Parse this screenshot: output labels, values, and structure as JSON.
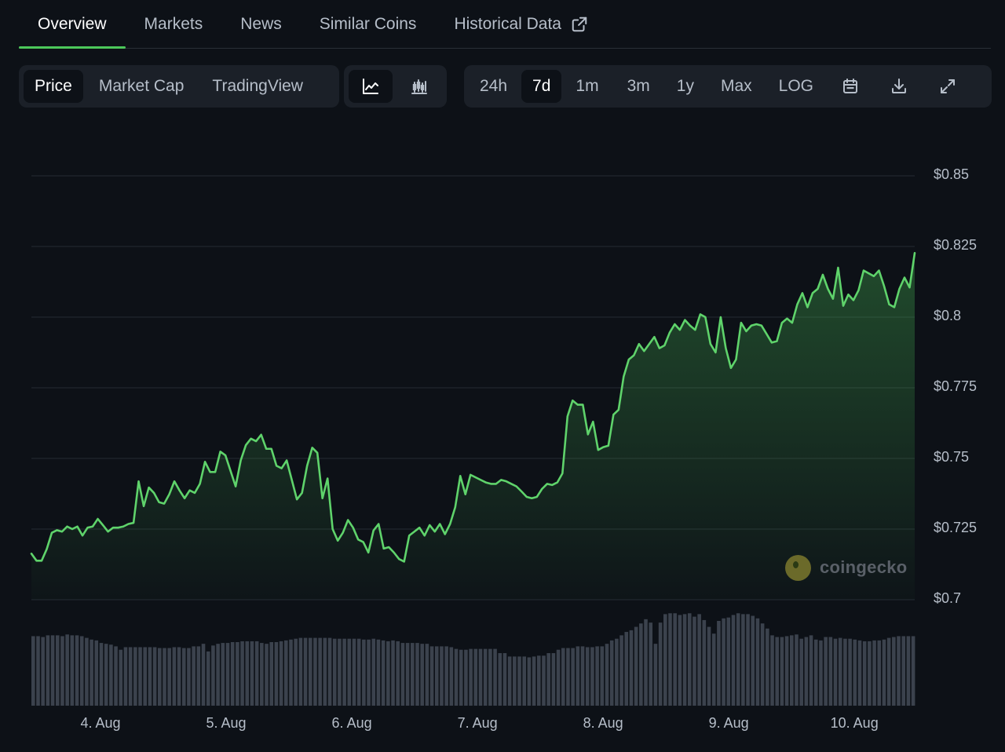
{
  "tabs": [
    {
      "label": "Overview"
    },
    {
      "label": "Markets"
    },
    {
      "label": "News"
    },
    {
      "label": "Similar Coins"
    },
    {
      "label": "Historical Data"
    }
  ],
  "metric_toggle": [
    "Price",
    "Market Cap",
    "TradingView"
  ],
  "metric_selected": "Price",
  "chart_style_icons": [
    "line-chart-icon",
    "candlestick-icon"
  ],
  "ranges": [
    "24h",
    "7d",
    "1m",
    "3m",
    "1y",
    "Max",
    "LOG"
  ],
  "range_selected": "7d",
  "toolbar_icons": [
    "calendar-icon",
    "download-icon",
    "fullscreen-icon"
  ],
  "watermark": "coingecko",
  "colors": {
    "line": "#5fd36b",
    "accent": "#4cc85a",
    "volume": "#3b424d",
    "background": "#0d1117"
  },
  "chart_data": {
    "type": "area",
    "y_ticks": [
      "$0.7",
      "$0.725",
      "$0.75",
      "$0.775",
      "$0.8",
      "$0.825",
      "$0.85"
    ],
    "ylim": [
      0.7,
      0.85
    ],
    "x_ticks": [
      "4. Aug",
      "5. Aug",
      "6. Aug",
      "7. Aug",
      "8. Aug",
      "9. Aug",
      "10. Aug"
    ],
    "x_tick_days": [
      1,
      2,
      3,
      4,
      5,
      6,
      7
    ],
    "xlim_days": [
      0.45,
      7.48
    ],
    "grid": true,
    "price": [
      0.7163,
      0.7138,
      0.7138,
      0.7179,
      0.7237,
      0.7246,
      0.7241,
      0.7259,
      0.725,
      0.7259,
      0.7227,
      0.7255,
      0.7259,
      0.7286,
      0.7264,
      0.7241,
      0.7255,
      0.7255,
      0.7259,
      0.7268,
      0.7272,
      0.7419,
      0.7331,
      0.7397,
      0.7378,
      0.7345,
      0.734,
      0.7373,
      0.7419,
      0.7387,
      0.7359,
      0.7387,
      0.7378,
      0.741,
      0.7488,
      0.7452,
      0.7452,
      0.7524,
      0.7511,
      0.7456,
      0.7401,
      0.7493,
      0.7547,
      0.757,
      0.7561,
      0.7584,
      0.7534,
      0.7534,
      0.7474,
      0.7465,
      0.7493,
      0.7424,
      0.7355,
      0.7378,
      0.7474,
      0.7538,
      0.752,
      0.7359,
      0.7429,
      0.725,
      0.7209,
      0.7237,
      0.7282,
      0.7255,
      0.7213,
      0.7204,
      0.7167,
      0.7245,
      0.7268,
      0.7181,
      0.7186,
      0.7167,
      0.7144,
      0.7135,
      0.7227,
      0.7241,
      0.7255,
      0.7227,
      0.7264,
      0.7241,
      0.7268,
      0.7232,
      0.7268,
      0.7327,
      0.7438,
      0.7373,
      0.7442,
      0.7433,
      0.7424,
      0.7415,
      0.741,
      0.741,
      0.7424,
      0.7419,
      0.741,
      0.7401,
      0.7383,
      0.7364,
      0.7359,
      0.7364,
      0.7392,
      0.741,
      0.7406,
      0.7415,
      0.7447,
      0.7649,
      0.7705,
      0.769,
      0.769,
      0.7585,
      0.763,
      0.753,
      0.754,
      0.7545,
      0.7655,
      0.7672,
      0.779,
      0.785,
      0.7865,
      0.7905,
      0.788,
      0.7905,
      0.793,
      0.789,
      0.79,
      0.7945,
      0.7975,
      0.7955,
      0.799,
      0.797,
      0.7955,
      0.801,
      0.8,
      0.7905,
      0.7875,
      0.8,
      0.789,
      0.782,
      0.785,
      0.798,
      0.795,
      0.797,
      0.7975,
      0.797,
      0.794,
      0.791,
      0.7915,
      0.798,
      0.7995,
      0.798,
      0.8045,
      0.8085,
      0.8035,
      0.8085,
      0.81,
      0.815,
      0.81,
      0.8065,
      0.8175,
      0.804,
      0.808,
      0.806,
      0.8095,
      0.8165,
      0.8155,
      0.8145,
      0.8165,
      0.811,
      0.8045,
      0.8035,
      0.81,
      0.814,
      0.8105,
      0.8227
    ],
    "volume": [
      82,
      82,
      81,
      83,
      83,
      83,
      82,
      84,
      83,
      83,
      82,
      80,
      78,
      77,
      74,
      73,
      72,
      70,
      66,
      69,
      69,
      69,
      69,
      69,
      69,
      69,
      68,
      68,
      68,
      69,
      69,
      68,
      68,
      70,
      70,
      73,
      64,
      71,
      73,
      74,
      74,
      75,
      75,
      76,
      76,
      76,
      76,
      74,
      73,
      75,
      75,
      76,
      77,
      78,
      79,
      80,
      80,
      80,
      80,
      80,
      80,
      80,
      79,
      79,
      79,
      79,
      79,
      79,
      78,
      78,
      79,
      78,
      77,
      76,
      77,
      76,
      74,
      74,
      74,
      74,
      73,
      73,
      70,
      70,
      70,
      70,
      69,
      67,
      66,
      66,
      67,
      67,
      67,
      67,
      67,
      67,
      62,
      62,
      58,
      58,
      58,
      58,
      57,
      58,
      59,
      59,
      62,
      62,
      66,
      68,
      68,
      68,
      70,
      70,
      69,
      69,
      70,
      70,
      73,
      77,
      79,
      83,
      87,
      89,
      93,
      97,
      102,
      98,
      73,
      98,
      108,
      109,
      109,
      107,
      108,
      109,
      105,
      108,
      101,
      93,
      85,
      100,
      103,
      104,
      107,
      109,
      108,
      108,
      106,
      103,
      97,
      91,
      83,
      81,
      81,
      82,
      83,
      84,
      79,
      81,
      83,
      78,
      77,
      81,
      81,
      79,
      80,
      79,
      79,
      78,
      77,
      76,
      76,
      77,
      77,
      78,
      80,
      81,
      82,
      82,
      82,
      82
    ]
  }
}
